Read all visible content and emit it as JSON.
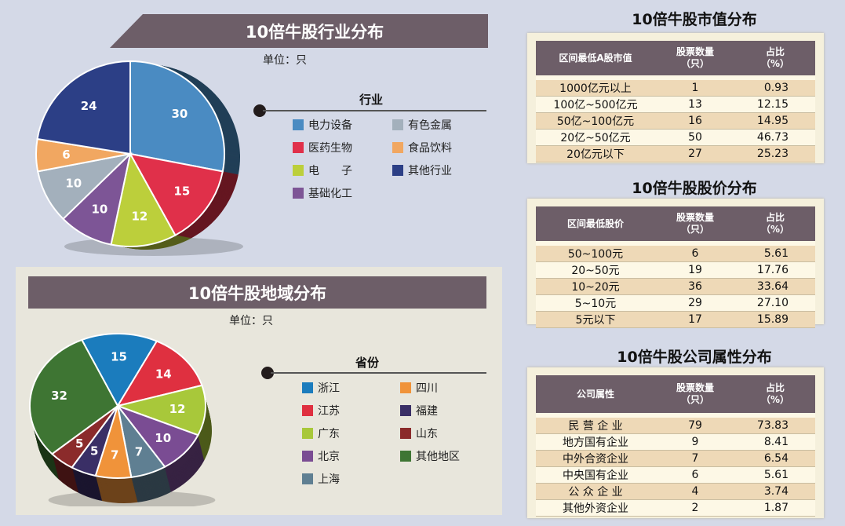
{
  "chart_data": [
    {
      "type": "pie",
      "title": "10倍牛股行业分布",
      "unit": "单位：只",
      "legend_title": "行业",
      "categories": [
        "电力设备",
        "医药生物",
        "电　　子",
        "基础化工",
        "有色金属",
        "食品饮料",
        "其他行业"
      ],
      "values": [
        30,
        15,
        12,
        10,
        10,
        6,
        24
      ],
      "colors": [
        "#4a8bc2",
        "#e0304a",
        "#bccf3b",
        "#7d5596",
        "#a3b0bc",
        "#f1a761",
        "#2c3f86"
      ],
      "legend_order": [
        0,
        4,
        1,
        5,
        2,
        6,
        3
      ]
    },
    {
      "type": "pie",
      "title": "10倍牛股地域分布",
      "unit": "单位：只",
      "legend_title": "省份",
      "categories": [
        "浙江",
        "江苏",
        "广东",
        "北京",
        "上海",
        "四川",
        "福建",
        "山东",
        "其他地区"
      ],
      "values": [
        15,
        14,
        12,
        10,
        7,
        7,
        5,
        5,
        32
      ],
      "colors": [
        "#1b7cbd",
        "#df3040",
        "#a8c83a",
        "#7a4c93",
        "#5f7f92",
        "#f0933a",
        "#3a2f66",
        "#8b2b2b",
        "#3e7533"
      ],
      "legend_order": [
        0,
        5,
        1,
        6,
        2,
        7,
        3,
        8,
        4
      ]
    }
  ],
  "tables": [
    {
      "title": "10倍牛股市值分布",
      "headers": [
        "区间最低A股市值",
        "股票数量\n（只）",
        "占比\n（%）"
      ],
      "rows": [
        [
          "1000亿元以上",
          "1",
          "0.93"
        ],
        [
          "100亿~500亿元",
          "13",
          "12.15"
        ],
        [
          "50亿~100亿元",
          "16",
          "14.95"
        ],
        [
          "20亿~50亿元",
          "50",
          "46.73"
        ],
        [
          "20亿元以下",
          "27",
          "25.23"
        ]
      ]
    },
    {
      "title": "10倍牛股股价分布",
      "headers": [
        "区间最低股价",
        "股票数量\n（只）",
        "占比\n（%）"
      ],
      "rows": [
        [
          "50~100元",
          "6",
          "5.61"
        ],
        [
          "20~50元",
          "19",
          "17.76"
        ],
        [
          "10~20元",
          "36",
          "33.64"
        ],
        [
          "5~10元",
          "29",
          "27.10"
        ],
        [
          "5元以下",
          "17",
          "15.89"
        ]
      ]
    },
    {
      "title": "10倍牛股公司属性分布",
      "headers": [
        "公司属性",
        "股票数量\n（只）",
        "占比\n（%）"
      ],
      "rows": [
        [
          "民 营 企 业",
          "79",
          "73.83"
        ],
        [
          "地方国有企业",
          "9",
          "8.41"
        ],
        [
          "中外合资企业",
          "7",
          "6.54"
        ],
        [
          "中央国有企业",
          "6",
          "5.61"
        ],
        [
          "公 众 企 业",
          "4",
          "3.74"
        ],
        [
          "其他外资企业",
          "2",
          "1.87"
        ]
      ]
    }
  ],
  "colors": {
    "banner": "#6d5e68",
    "background": "#d4d9e7",
    "panel": "#e8e6dc"
  }
}
